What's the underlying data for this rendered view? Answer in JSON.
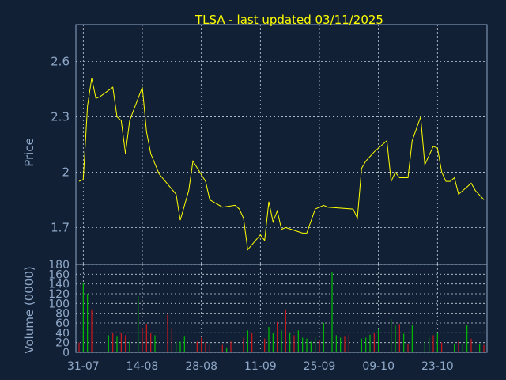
{
  "chart_data": [
    {
      "type": "line",
      "panel": "price",
      "title": "TLSA - last updated 03/11/2025",
      "ylabel": "Price",
      "ylim": [
        1.5,
        2.8
      ],
      "yticks": [
        "1.7",
        "2",
        "2.3",
        "2.6"
      ],
      "line_color": "#ffff00",
      "grid": true,
      "x_start": "2025-07-30",
      "x_end": "2025-11-03",
      "series": [
        {
          "x": [
            "2025-07-30",
            "2025-07-31",
            "2025-08-01",
            "2025-08-02",
            "2025-08-03",
            "2025-08-04",
            "2025-08-07",
            "2025-08-08",
            "2025-08-09",
            "2025-08-10",
            "2025-08-11",
            "2025-08-14",
            "2025-08-15",
            "2025-08-16",
            "2025-08-18",
            "2025-08-22",
            "2025-08-23",
            "2025-08-25",
            "2025-08-26",
            "2025-08-29",
            "2025-08-30",
            "2025-09-02",
            "2025-09-05",
            "2025-09-06",
            "2025-09-07",
            "2025-09-08",
            "2025-09-11",
            "2025-09-12",
            "2025-09-13",
            "2025-09-14",
            "2025-09-15",
            "2025-09-16",
            "2025-09-17",
            "2025-09-21",
            "2025-09-22",
            "2025-09-24",
            "2025-09-26",
            "2025-09-27",
            "2025-10-03",
            "2025-10-04",
            "2025-10-05",
            "2025-10-06",
            "2025-10-08",
            "2025-10-11",
            "2025-10-12",
            "2025-10-13",
            "2025-10-14",
            "2025-10-16",
            "2025-10-17",
            "2025-10-19",
            "2025-10-20",
            "2025-10-22",
            "2025-10-23",
            "2025-10-24",
            "2025-10-25",
            "2025-10-26",
            "2025-10-27",
            "2025-10-28",
            "2025-10-30",
            "2025-10-31",
            "2025-11-01",
            "2025-11-03"
          ],
          "y": [
            1.95,
            1.96,
            2.36,
            2.51,
            2.4,
            2.41,
            2.46,
            2.3,
            2.28,
            2.1,
            2.28,
            2.46,
            2.22,
            2.1,
            1.99,
            1.88,
            1.74,
            1.9,
            2.06,
            1.95,
            1.85,
            1.81,
            1.82,
            1.8,
            1.75,
            1.58,
            1.66,
            1.63,
            1.84,
            1.73,
            1.79,
            1.69,
            1.7,
            1.67,
            1.67,
            1.8,
            1.82,
            1.81,
            1.8,
            1.75,
            2.02,
            2.06,
            2.11,
            2.17,
            1.95,
            2.0,
            1.97,
            1.97,
            2.17,
            2.3,
            2.04,
            2.14,
            2.13,
            2.0,
            1.95,
            1.95,
            1.97,
            1.88,
            1.92,
            1.94,
            1.9,
            1.85
          ]
        }
      ]
    },
    {
      "type": "bar",
      "panel": "volume",
      "ylabel": "Volume (0000)",
      "ylim": [
        0,
        180
      ],
      "yticks": [
        "0",
        "20",
        "40",
        "60",
        "80",
        "100",
        "120",
        "140",
        "160",
        "180"
      ],
      "up_color": "#00c000",
      "down_color": "#d01818",
      "xticks": [
        "31-07",
        "14-08",
        "28-08",
        "11-09",
        "25-09",
        "09-10",
        "23-10"
      ],
      "x_start": "2025-07-30",
      "x_end": "2025-11-03",
      "series": [
        {
          "x": [
            "2025-07-30",
            "2025-07-31",
            "2025-08-01",
            "2025-08-02",
            "2025-08-06",
            "2025-08-07",
            "2025-08-08",
            "2025-08-09",
            "2025-08-10",
            "2025-08-11",
            "2025-08-13",
            "2025-08-14",
            "2025-08-15",
            "2025-08-16",
            "2025-08-17",
            "2025-08-20",
            "2025-08-21",
            "2025-08-22",
            "2025-08-23",
            "2025-08-24",
            "2025-08-27",
            "2025-08-28",
            "2025-08-29",
            "2025-08-30",
            "2025-09-02",
            "2025-09-03",
            "2025-09-04",
            "2025-09-07",
            "2025-09-08",
            "2025-09-09",
            "2025-09-12",
            "2025-09-13",
            "2025-09-14",
            "2025-09-15",
            "2025-09-16",
            "2025-09-17",
            "2025-09-18",
            "2025-09-19",
            "2025-09-20",
            "2025-09-21",
            "2025-09-22",
            "2025-09-23",
            "2025-09-24",
            "2025-09-25",
            "2025-09-26",
            "2025-09-28",
            "2025-09-29",
            "2025-09-30",
            "2025-10-01",
            "2025-10-02",
            "2025-10-05",
            "2025-10-06",
            "2025-10-07",
            "2025-10-08",
            "2025-10-09",
            "2025-10-12",
            "2025-10-13",
            "2025-10-14",
            "2025-10-15",
            "2025-10-16",
            "2025-10-17",
            "2025-10-20",
            "2025-10-21",
            "2025-10-22",
            "2025-10-23",
            "2025-10-24",
            "2025-10-27",
            "2025-10-28",
            "2025-10-29",
            "2025-10-30",
            "2025-10-31",
            "2025-11-02",
            "2025-11-03"
          ],
          "values": [
            20,
            142,
            120,
            88,
            35,
            40,
            32,
            40,
            35,
            22,
            115,
            50,
            58,
            40,
            35,
            77,
            50,
            22,
            22,
            32,
            22,
            30,
            20,
            15,
            15,
            10,
            22,
            30,
            45,
            40,
            28,
            52,
            40,
            62,
            45,
            88,
            40,
            35,
            45,
            30,
            28,
            22,
            30,
            25,
            60,
            165,
            35,
            30,
            32,
            36,
            28,
            30,
            36,
            40,
            48,
            68,
            55,
            58,
            38,
            18,
            55,
            22,
            30,
            35,
            40,
            20,
            18,
            22,
            18,
            55,
            28,
            18,
            15
          ],
          "direction": [
            "down",
            "up",
            "up",
            "down",
            "up",
            "down",
            "up",
            "down",
            "down",
            "up",
            "up",
            "down",
            "down",
            "down",
            "up",
            "down",
            "down",
            "up",
            "up",
            "up",
            "down",
            "down",
            "down",
            "down",
            "down",
            "up",
            "down",
            "down",
            "up",
            "down",
            "down",
            "up",
            "up",
            "down",
            "up",
            "down",
            "up",
            "down",
            "up",
            "up",
            "up",
            "up",
            "up",
            "down",
            "up",
            "up",
            "up",
            "up",
            "down",
            "down",
            "up",
            "up",
            "up",
            "down",
            "up",
            "up",
            "up",
            "down",
            "up",
            "down",
            "up",
            "up",
            "up",
            "down",
            "up",
            "down",
            "up",
            "down",
            "up",
            "up",
            "down",
            "up",
            "down"
          ]
        }
      ]
    }
  ]
}
